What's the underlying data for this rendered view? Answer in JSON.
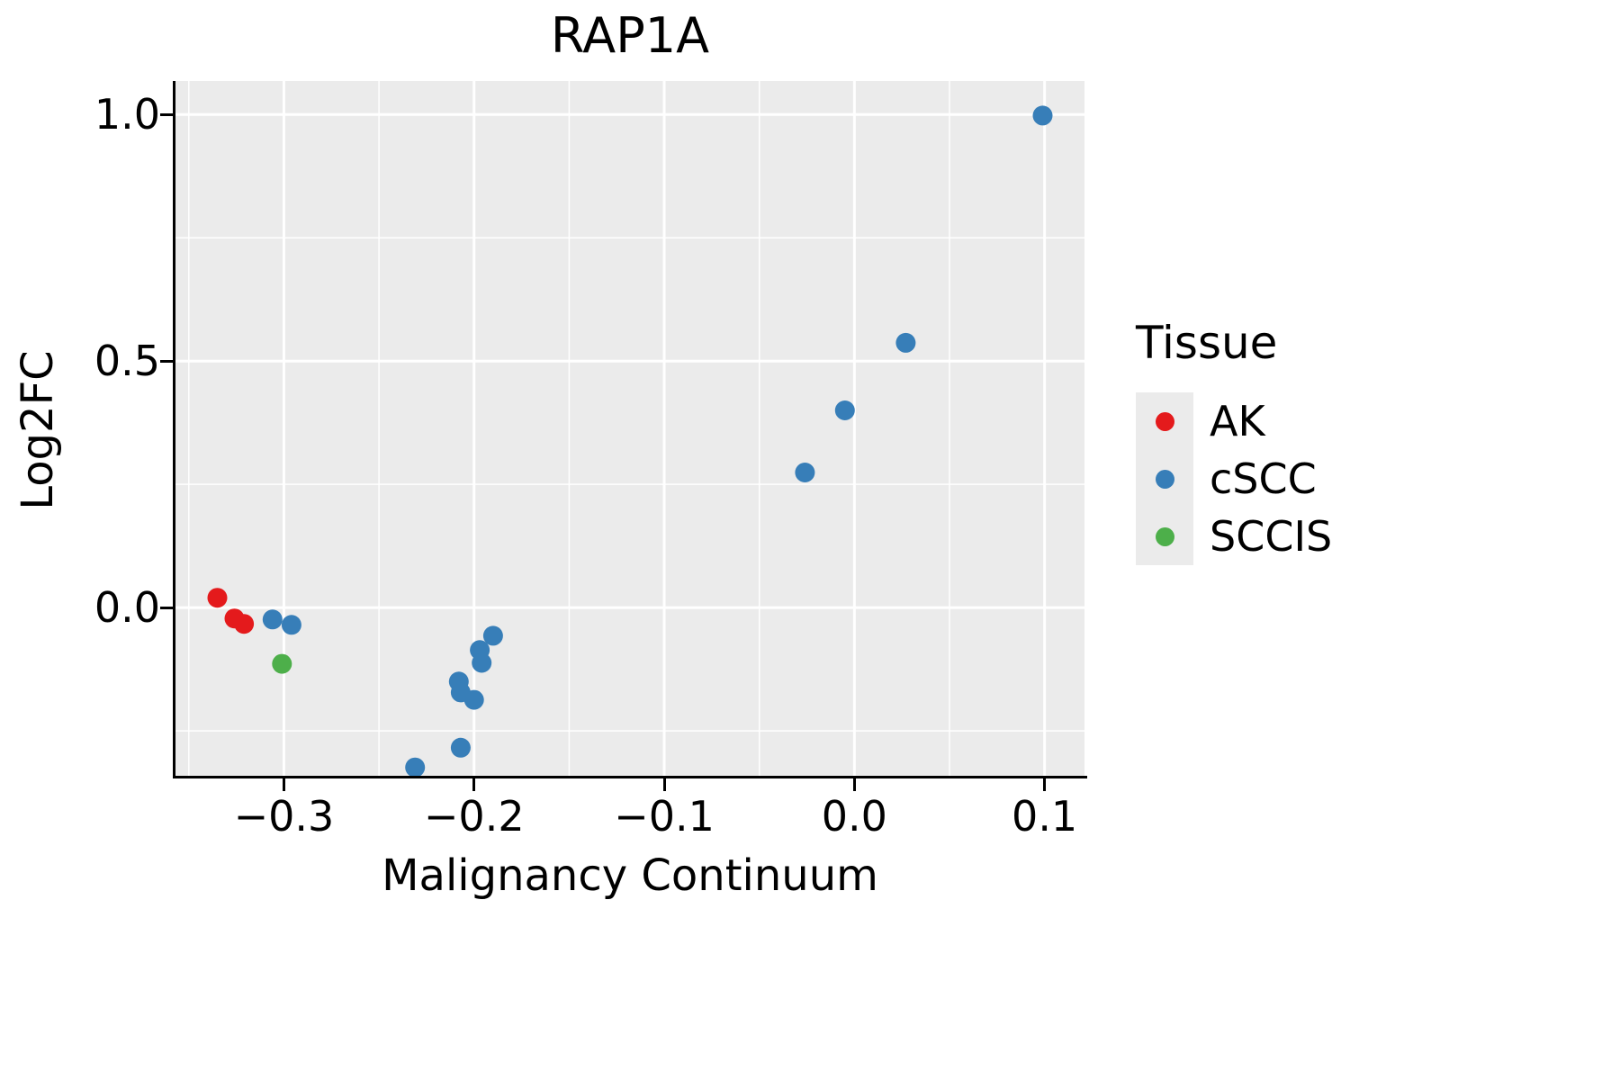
{
  "title": "RAP1A",
  "axes": {
    "x_label": "Malignancy Continuum",
    "y_label": "Log2FC",
    "x_tick_labels": [
      "−0.3",
      "−0.2",
      "−0.1",
      "0.0",
      "0.1"
    ],
    "y_tick_labels": [
      "0.0",
      "0.5",
      "1.0"
    ]
  },
  "legend": {
    "title": "Tissue",
    "items": [
      {
        "label": "AK",
        "color": "#E41A1C"
      },
      {
        "label": "cSCC",
        "color": "#377EB8"
      },
      {
        "label": "SCCIS",
        "color": "#4DAF4A"
      }
    ]
  },
  "style": {
    "panel_background": "#ebebeb",
    "grid_color": "#ffffff",
    "axis_color": "#000000",
    "point_radius": 11
  },
  "chart_data": {
    "type": "scatter",
    "title": "RAP1A",
    "xlabel": "Malignancy Continuum",
    "ylabel": "Log2FC",
    "xlim": [
      -0.357,
      0.121
    ],
    "ylim": [
      -0.341,
      1.068
    ],
    "x_major_ticks": [
      -0.3,
      -0.2,
      -0.1,
      0.0,
      0.1
    ],
    "y_major_ticks": [
      0.0,
      0.5,
      1.0
    ],
    "x_minor_ticks": [
      -0.35,
      -0.25,
      -0.15,
      -0.05,
      0.05
    ],
    "y_minor_ticks": [
      -0.25,
      0.25,
      0.75
    ],
    "grid": true,
    "legend_position": "right",
    "legend_title": "Tissue",
    "series": [
      {
        "name": "AK",
        "color": "#E41A1C",
        "points": [
          [
            -0.335,
            0.02
          ],
          [
            -0.326,
            -0.022
          ],
          [
            -0.321,
            -0.033
          ]
        ]
      },
      {
        "name": "cSCC",
        "color": "#377EB8",
        "points": [
          [
            -0.306,
            -0.024
          ],
          [
            -0.296,
            -0.035
          ],
          [
            -0.231,
            -0.324
          ],
          [
            -0.207,
            -0.284
          ],
          [
            -0.208,
            -0.15
          ],
          [
            -0.207,
            -0.172
          ],
          [
            -0.2,
            -0.187
          ],
          [
            -0.197,
            -0.086
          ],
          [
            -0.196,
            -0.112
          ],
          [
            -0.19,
            -0.057
          ],
          [
            -0.026,
            0.274
          ],
          [
            -0.005,
            0.4
          ],
          [
            0.027,
            0.537
          ],
          [
            0.099,
            0.998
          ]
        ]
      },
      {
        "name": "SCCIS",
        "color": "#4DAF4A",
        "points": [
          [
            -0.301,
            -0.114
          ]
        ]
      }
    ]
  }
}
